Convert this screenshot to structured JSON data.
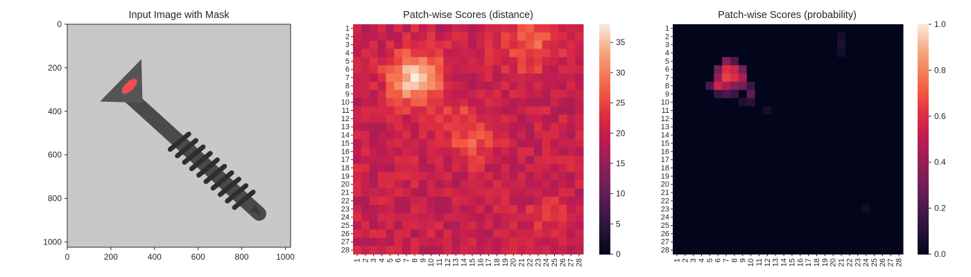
{
  "chart_data": [
    {
      "type": "image",
      "title": "Input Image with Mask",
      "xlim": [
        0,
        1024
      ],
      "ylim": [
        1024,
        0
      ],
      "x_ticks": [
        0,
        200,
        400,
        600,
        800,
        1000
      ],
      "y_ticks": [
        0,
        200,
        400,
        600,
        800,
        1000
      ],
      "screw": {
        "head_center": [
          250,
          300
        ],
        "head_tip_a": [
          340,
          160
        ],
        "head_tip_b": [
          150,
          355
        ],
        "shaft_end": [
          880,
          870
        ],
        "mask_center": [
          285,
          285
        ],
        "mask_length": 90,
        "mask_width": 40
      },
      "colors": {
        "background": "#c8c8c8",
        "metal": "#4a4a4a",
        "mask": "#ff5050"
      }
    },
    {
      "type": "heatmap",
      "title": "Patch-wise Scores (distance)",
      "rows": 28,
      "cols": 28,
      "x_labels": [
        "1",
        "2",
        "3",
        "4",
        "5",
        "6",
        "7",
        "8",
        "9",
        "10",
        "11",
        "12",
        "13",
        "14",
        "15",
        "16",
        "17",
        "18",
        "19",
        "20",
        "21",
        "22",
        "23",
        "24",
        "25",
        "26",
        "27",
        "28"
      ],
      "y_labels": [
        "1",
        "2",
        "3",
        "4",
        "5",
        "6",
        "7",
        "8",
        "9",
        "10",
        "11",
        "12",
        "13",
        "14",
        "15",
        "16",
        "17",
        "18",
        "19",
        "20",
        "21",
        "22",
        "23",
        "24",
        "25",
        "26",
        "27",
        "28"
      ],
      "colorbar": {
        "vmin": 0,
        "vmax": 38,
        "ticks": [
          0,
          5,
          10,
          15,
          20,
          25,
          30,
          35
        ]
      },
      "model": {
        "base": 20,
        "blobs": [
          {
            "row": 7,
            "col": 8,
            "sigma": 2.2,
            "amp": 17
          },
          {
            "row": 3,
            "col": 22,
            "sigma": 2.5,
            "amp": 7
          },
          {
            "row": 15,
            "col": 15,
            "sigma": 1.8,
            "amp": 6
          },
          {
            "row": 12,
            "col": 13,
            "sigma": 1.5,
            "amp": 5
          },
          {
            "row": 24,
            "col": 24,
            "sigma": 1.5,
            "amp": 4
          }
        ]
      }
    },
    {
      "type": "heatmap",
      "title": "Patch-wise Scores (probability)",
      "rows": 28,
      "cols": 28,
      "x_labels": [
        "1",
        "2",
        "3",
        "4",
        "5",
        "6",
        "7",
        "8",
        "9",
        "10",
        "11",
        "12",
        "13",
        "14",
        "15",
        "16",
        "17",
        "18",
        "19",
        "20",
        "21",
        "22",
        "23",
        "24",
        "25",
        "26",
        "27",
        "28"
      ],
      "y_labels": [
        "1",
        "2",
        "3",
        "4",
        "5",
        "6",
        "7",
        "8",
        "9",
        "10",
        "11",
        "12",
        "13",
        "14",
        "15",
        "16",
        "17",
        "18",
        "19",
        "20",
        "21",
        "22",
        "23",
        "24",
        "25",
        "26",
        "27",
        "28"
      ],
      "colorbar": {
        "vmin": 0.0,
        "vmax": 1.0,
        "ticks": [
          "0.0",
          "0.2",
          "0.4",
          "0.6",
          "0.8",
          "1.0"
        ]
      },
      "high_cells": [
        {
          "row": 5,
          "col": 7,
          "value": 0.35
        },
        {
          "row": 5,
          "col": 8,
          "value": 0.2
        },
        {
          "row": 6,
          "col": 6,
          "value": 0.3
        },
        {
          "row": 6,
          "col": 7,
          "value": 0.6
        },
        {
          "row": 6,
          "col": 8,
          "value": 0.55
        },
        {
          "row": 6,
          "col": 9,
          "value": 0.3
        },
        {
          "row": 7,
          "col": 6,
          "value": 0.4
        },
        {
          "row": 7,
          "col": 7,
          "value": 0.65
        },
        {
          "row": 7,
          "col": 8,
          "value": 0.6
        },
        {
          "row": 7,
          "col": 9,
          "value": 0.45
        },
        {
          "row": 8,
          "col": 5,
          "value": 0.2
        },
        {
          "row": 8,
          "col": 6,
          "value": 0.55
        },
        {
          "row": 8,
          "col": 7,
          "value": 0.45
        },
        {
          "row": 8,
          "col": 8,
          "value": 0.35
        },
        {
          "row": 8,
          "col": 9,
          "value": 0.3
        },
        {
          "row": 8,
          "col": 10,
          "value": 0.15
        },
        {
          "row": 9,
          "col": 6,
          "value": 0.15
        },
        {
          "row": 9,
          "col": 7,
          "value": 0.2
        },
        {
          "row": 9,
          "col": 8,
          "value": 0.15
        },
        {
          "row": 9,
          "col": 10,
          "value": 0.25
        },
        {
          "row": 10,
          "col": 9,
          "value": 0.08
        },
        {
          "row": 10,
          "col": 10,
          "value": 0.1
        },
        {
          "row": 11,
          "col": 12,
          "value": 0.06
        },
        {
          "row": 2,
          "col": 21,
          "value": 0.06
        },
        {
          "row": 3,
          "col": 21,
          "value": 0.08
        },
        {
          "row": 4,
          "col": 21,
          "value": 0.05
        },
        {
          "row": 23,
          "col": 24,
          "value": 0.04
        }
      ]
    }
  ]
}
